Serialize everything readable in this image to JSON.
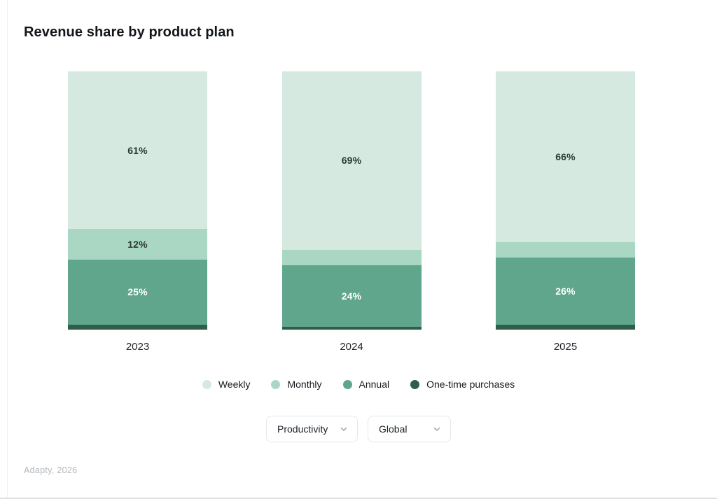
{
  "page": {
    "title": "Revenue share by product plan",
    "footer": "Adapty, 2026"
  },
  "filters": {
    "category": {
      "value": "Productivity"
    },
    "region": {
      "value": "Global"
    }
  },
  "colors": {
    "weekly": "#d5e9e1",
    "monthly": "#aad7c4",
    "annual": "#5fa68d",
    "one_time": "#2f5d4a",
    "label_dark": "#2b3a35",
    "label_light": "#ffffff"
  },
  "chart_data": {
    "type": "bar",
    "stacked": true,
    "title": "Revenue share by product plan",
    "categories": [
      "2023",
      "2024",
      "2025"
    ],
    "series": [
      {
        "name": "Weekly",
        "color": "#d5e9e1",
        "values": [
          61,
          69,
          66
        ],
        "labels": [
          "61%",
          "69%",
          "66%"
        ],
        "label_color": "#2b3a35"
      },
      {
        "name": "Monthly",
        "color": "#aad7c4",
        "values": [
          12,
          6,
          6
        ],
        "labels": [
          "12%",
          null,
          null
        ],
        "label_color": "#2b3a35"
      },
      {
        "name": "Annual",
        "color": "#5fa68d",
        "values": [
          25,
          24,
          26
        ],
        "labels": [
          "25%",
          "24%",
          "26%"
        ],
        "label_color": "#ffffff"
      },
      {
        "name": "One-time purchases",
        "color": "#2f5d4a",
        "values": [
          2,
          1,
          2
        ],
        "labels": [
          null,
          null,
          null
        ],
        "label_color": "#ffffff"
      }
    ],
    "xlabel": "",
    "ylabel": "",
    "ylim": [
      0,
      100
    ],
    "value_format": "percent",
    "grid": false,
    "legend_position": "bottom"
  }
}
